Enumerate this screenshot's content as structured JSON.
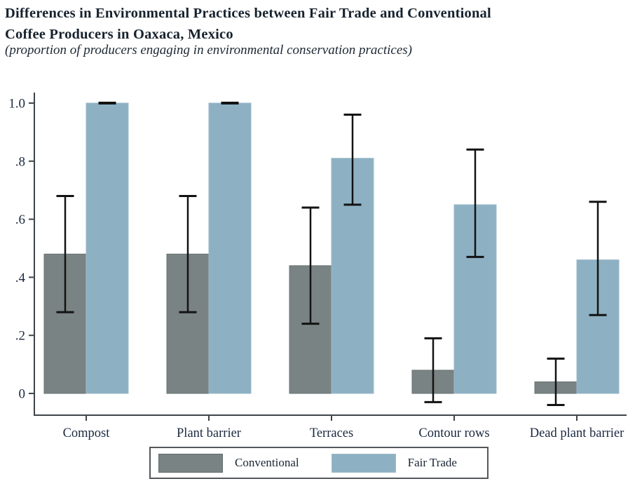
{
  "header": {
    "title_line1": "Differences in Environmental Practices between Fair Trade and Conventional",
    "title_line2": "Coffee Producers in Oaxaca, Mexico",
    "subtitle": "(proportion of producers engaging in environmental conservation practices)"
  },
  "chart_data": {
    "type": "bar",
    "title": "Differences in Environmental Practices between Fair Trade and Conventional Coffee Producers in Oaxaca, Mexico",
    "subtitle": "(proportion of producers engaging in environmental conservation practices)",
    "categories": [
      "Compost",
      "Plant barrier",
      "Terraces",
      "Contour rows",
      "Dead plant barrier"
    ],
    "series": [
      {
        "name": "Conventional",
        "color": "#7a8383",
        "border_color": "#6a7373",
        "values": [
          0.48,
          0.48,
          0.44,
          0.08,
          0.04
        ],
        "ci_low": [
          0.28,
          0.28,
          0.24,
          -0.03,
          -0.04
        ],
        "ci_high": [
          0.68,
          0.68,
          0.64,
          0.19,
          0.12
        ]
      },
      {
        "name": "Fair Trade",
        "color": "#8db1c3",
        "border_color": "#9ab9c9",
        "values": [
          1.0,
          1.0,
          0.81,
          0.65,
          0.46
        ],
        "ci_low": [
          1.0,
          1.0,
          0.65,
          0.47,
          0.27
        ],
        "ci_high": [
          1.0,
          1.0,
          0.96,
          0.84,
          0.66
        ]
      }
    ],
    "y_ticks": [
      {
        "v": 0.0,
        "label": "0"
      },
      {
        "v": 0.2,
        "label": ".2"
      },
      {
        "v": 0.4,
        "label": ".4"
      },
      {
        "v": 0.6,
        "label": ".6"
      },
      {
        "v": 0.8,
        "label": ".8"
      },
      {
        "v": 1.0,
        "label": "1.0"
      }
    ],
    "ylim": [
      -0.075,
      1.04
    ],
    "xlabel": "",
    "ylabel": "",
    "grid": false,
    "error_bars": true,
    "legend_position": "bottom",
    "colors": {
      "text": "#1b2940",
      "axis": "#3f444a",
      "error_bar": "#131313",
      "background": "#ffffff"
    }
  }
}
